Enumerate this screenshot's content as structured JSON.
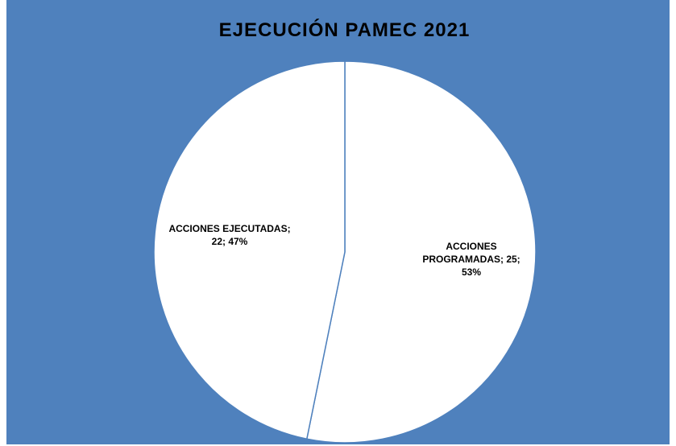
{
  "chart_data": {
    "type": "pie",
    "title": "EJECUCIÓN  PAMEC 2021",
    "categories": [
      "ACCIONES PROGRAMADAS",
      "ACCIONES EJECUTADAS"
    ],
    "values": [
      25,
      22
    ],
    "percentages": [
      "53%",
      "47%"
    ],
    "labels": [
      {
        "line1": "ACCIONES",
        "line2": "PROGRAMADAS; 25;",
        "line3": "53%"
      },
      {
        "line1": "ACCIONES EJECUTADAS;",
        "line2": "22; 47%"
      }
    ],
    "colors": {
      "background": "#4f81bd",
      "slice_fill": "#ffffff",
      "slice_border": "#4f81bd"
    }
  }
}
